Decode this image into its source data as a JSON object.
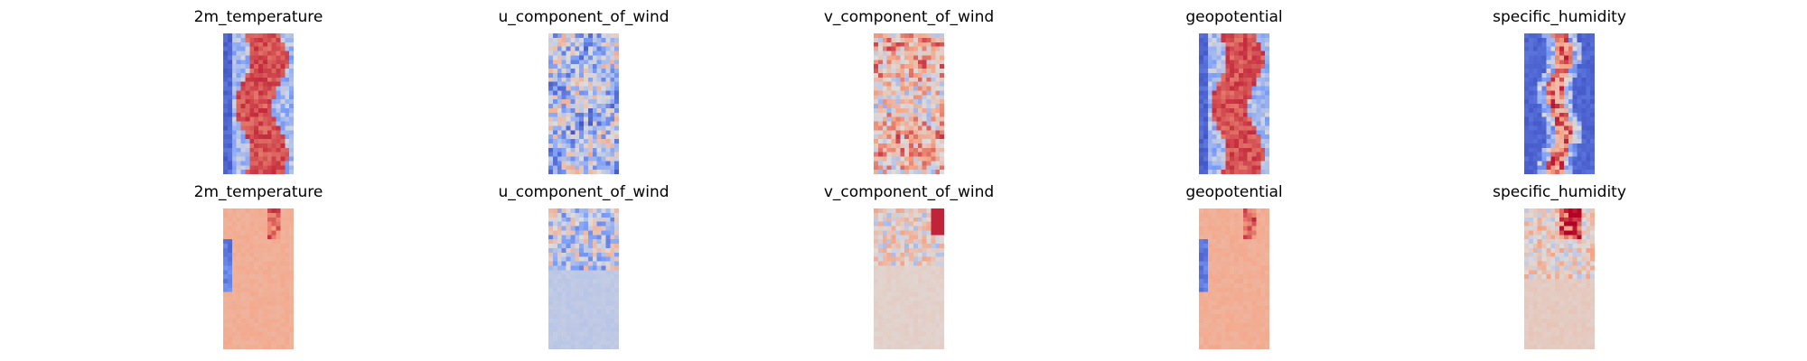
{
  "chart_data": {
    "type": "heatmap",
    "colormap": "coolwarm",
    "axes_visible": false,
    "grid": false,
    "legend": "none",
    "layout": {
      "rows": 2,
      "columns": 5
    },
    "panels": [
      {
        "title": "2m_temperature",
        "field": "2m_temperature",
        "pattern": "warm-core"
      },
      {
        "title": "u_component_of_wind",
        "field": "u_component_of_wind",
        "pattern": "noisy-cool"
      },
      {
        "title": "v_component_of_wind",
        "field": "v_component_of_wind",
        "pattern": "noisy-warm"
      },
      {
        "title": "geopotential",
        "field": "geopotential",
        "pattern": "warm-core"
      },
      {
        "title": "specific_humidity",
        "field": "specific_humidity",
        "pattern": "humidity-core"
      },
      {
        "title": "2m_temperature",
        "field": "2m_temperature",
        "pattern": "flat-warm-left"
      },
      {
        "title": "u_component_of_wind",
        "field": "u_component_of_wind",
        "pattern": "flat-cool-top"
      },
      {
        "title": "v_component_of_wind",
        "field": "v_component_of_wind",
        "pattern": "flat-neutral-top"
      },
      {
        "title": "geopotential",
        "field": "geopotential",
        "pattern": "flat-warm-left"
      },
      {
        "title": "specific_humidity",
        "field": "specific_humidity",
        "pattern": "flat-neutral-hot-top"
      }
    ]
  }
}
